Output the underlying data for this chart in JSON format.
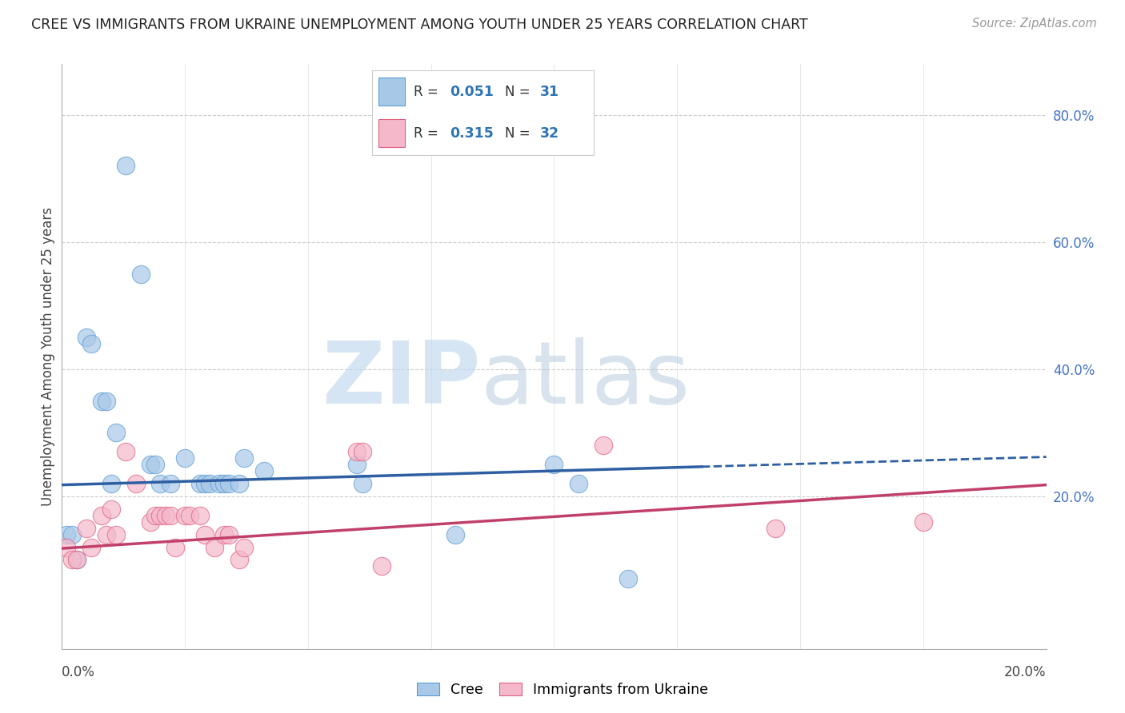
{
  "title": "CREE VS IMMIGRANTS FROM UKRAINE UNEMPLOYMENT AMONG YOUTH UNDER 25 YEARS CORRELATION CHART",
  "source": "Source: ZipAtlas.com",
  "ylabel": "Unemployment Among Youth under 25 years",
  "xmin": 0.0,
  "xmax": 0.2,
  "ymin": -0.04,
  "ymax": 0.88,
  "ytick_values": [
    0.0,
    0.2,
    0.4,
    0.6,
    0.8
  ],
  "cree_color": "#a8c8e8",
  "cree_edge_color": "#5b9bd5",
  "ukraine_color": "#f4b8ca",
  "ukraine_edge_color": "#e06080",
  "cree_line_color": "#2e5fa3",
  "ukraine_line_color": "#c0406a",
  "watermark_zip_color": "#c8ddf0",
  "watermark_atlas_color": "#c8ddf0",
  "cree_scatter": [
    [
      0.001,
      0.14
    ],
    [
      0.002,
      0.14
    ],
    [
      0.003,
      0.1
    ],
    [
      0.005,
      0.45
    ],
    [
      0.006,
      0.44
    ],
    [
      0.008,
      0.35
    ],
    [
      0.009,
      0.35
    ],
    [
      0.01,
      0.22
    ],
    [
      0.011,
      0.3
    ],
    [
      0.013,
      0.72
    ],
    [
      0.016,
      0.55
    ],
    [
      0.018,
      0.25
    ],
    [
      0.019,
      0.25
    ],
    [
      0.02,
      0.22
    ],
    [
      0.022,
      0.22
    ],
    [
      0.025,
      0.26
    ],
    [
      0.028,
      0.22
    ],
    [
      0.029,
      0.22
    ],
    [
      0.03,
      0.22
    ],
    [
      0.032,
      0.22
    ],
    [
      0.033,
      0.22
    ],
    [
      0.034,
      0.22
    ],
    [
      0.036,
      0.22
    ],
    [
      0.037,
      0.26
    ],
    [
      0.041,
      0.24
    ],
    [
      0.06,
      0.25
    ],
    [
      0.061,
      0.22
    ],
    [
      0.08,
      0.14
    ],
    [
      0.1,
      0.25
    ],
    [
      0.105,
      0.22
    ],
    [
      0.115,
      0.07
    ]
  ],
  "ukraine_scatter": [
    [
      0.001,
      0.12
    ],
    [
      0.002,
      0.1
    ],
    [
      0.003,
      0.1
    ],
    [
      0.005,
      0.15
    ],
    [
      0.006,
      0.12
    ],
    [
      0.008,
      0.17
    ],
    [
      0.009,
      0.14
    ],
    [
      0.01,
      0.18
    ],
    [
      0.011,
      0.14
    ],
    [
      0.013,
      0.27
    ],
    [
      0.015,
      0.22
    ],
    [
      0.018,
      0.16
    ],
    [
      0.019,
      0.17
    ],
    [
      0.02,
      0.17
    ],
    [
      0.021,
      0.17
    ],
    [
      0.022,
      0.17
    ],
    [
      0.023,
      0.12
    ],
    [
      0.025,
      0.17
    ],
    [
      0.026,
      0.17
    ],
    [
      0.028,
      0.17
    ],
    [
      0.029,
      0.14
    ],
    [
      0.031,
      0.12
    ],
    [
      0.033,
      0.14
    ],
    [
      0.034,
      0.14
    ],
    [
      0.036,
      0.1
    ],
    [
      0.037,
      0.12
    ],
    [
      0.06,
      0.27
    ],
    [
      0.061,
      0.27
    ],
    [
      0.065,
      0.09
    ],
    [
      0.11,
      0.28
    ],
    [
      0.145,
      0.15
    ],
    [
      0.175,
      0.16
    ]
  ],
  "cree_trend_x": [
    0.0,
    0.2
  ],
  "cree_trend_y": [
    0.218,
    0.262
  ],
  "ukraine_trend_x": [
    0.0,
    0.2
  ],
  "ukraine_trend_y": [
    0.118,
    0.218
  ],
  "legend_R_color": "#2e5fa3",
  "legend_N_color": "#2e5fa3"
}
